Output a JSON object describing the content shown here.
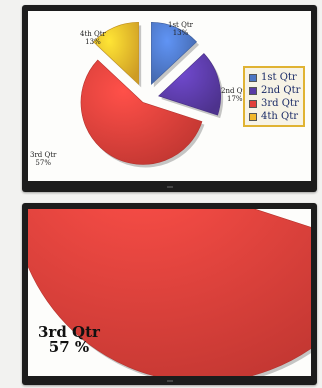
{
  "chart_data": {
    "type": "pie",
    "categories": [
      "1st Qtr",
      "2nd Qtr",
      "3rd Qtr",
      "4th Qtr"
    ],
    "values": [
      13,
      17,
      57,
      13
    ],
    "percent_labels": [
      "13%",
      "17%",
      "57%",
      "13%"
    ],
    "legend_position": "right",
    "exploded": true,
    "colors": [
      "#4d76c4",
      "#5a3ba6",
      "#e2403a",
      "#f2b72a"
    ]
  },
  "zoomed_view": {
    "label_name": "3rd Qtr",
    "label_value": "57 %"
  },
  "colors": {
    "monitor_bezel": "#1c1c1c",
    "screen_bg": "#fdfdfb",
    "legend_bg": "#f7f3e6",
    "legend_border": "#e0b333",
    "legend_text": "#1a2a66"
  }
}
